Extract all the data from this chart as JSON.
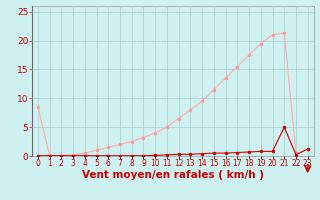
{
  "xlabel": "Vent moyen/en rafales ( km/h )",
  "background_color": "#cff0f0",
  "grid_color": "#aacccc",
  "xlim": [
    -0.5,
    23.5
  ],
  "ylim": [
    0,
    26
  ],
  "yticks": [
    0,
    5,
    10,
    15,
    20,
    25
  ],
  "xtick_labels": [
    "0",
    "1",
    "2",
    "3",
    "4",
    "5",
    "6",
    "7",
    "8",
    "9",
    "10",
    "11",
    "12",
    "13",
    "14",
    "15",
    "16",
    "17",
    "18",
    "19",
    "20",
    "21",
    "22",
    "23"
  ],
  "line1_x": [
    0,
    1,
    2,
    3,
    4,
    5,
    6,
    7,
    8,
    9,
    10,
    11,
    12,
    13,
    14,
    15,
    16,
    17,
    18,
    19,
    20,
    21,
    22,
    23
  ],
  "line1_y": [
    8.5,
    0.1,
    0.05,
    0.2,
    0.5,
    1.0,
    1.5,
    2.0,
    2.5,
    3.2,
    4.0,
    5.0,
    6.5,
    8.0,
    9.5,
    11.5,
    13.5,
    15.5,
    17.5,
    19.5,
    21.0,
    21.3,
    0.5,
    1.2
  ],
  "line1_color": "#ffaaaa",
  "line1_marker_color": "#ff9999",
  "line2_x": [
    0,
    1,
    2,
    3,
    4,
    5,
    6,
    7,
    8,
    9,
    10,
    11,
    12,
    13,
    14,
    15,
    16,
    17,
    18,
    19,
    20,
    21,
    22,
    23
  ],
  "line2_y": [
    0.05,
    0.05,
    0.05,
    0.05,
    0.05,
    0.05,
    0.05,
    0.05,
    0.05,
    0.05,
    0.1,
    0.2,
    0.3,
    0.3,
    0.4,
    0.5,
    0.5,
    0.6,
    0.7,
    0.8,
    0.8,
    5.0,
    0.2,
    1.2
  ],
  "line2_color": "#cc0000",
  "line2_marker_color": "#cc0000",
  "marker_size": 2.5,
  "linewidth1": 0.8,
  "linewidth2": 0.8,
  "xlabel_color": "#cc0000",
  "xlabel_fontsize": 7.5,
  "ytick_fontsize": 6.5,
  "xtick_fontsize": 5.5
}
